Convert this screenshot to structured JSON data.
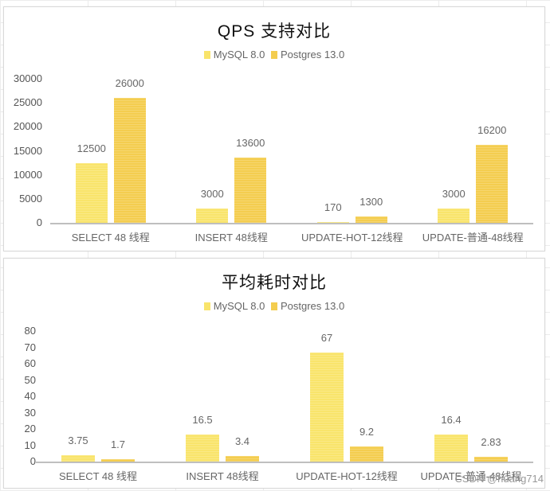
{
  "chart_data": [
    {
      "type": "bar",
      "title": "QPS 支持对比",
      "categories": [
        "SELECT 48 线程",
        "INSERT 48线程",
        "UPDATE-HOT-12线程",
        "UPDATE-普通-48线程"
      ],
      "series": [
        {
          "name": "MySQL 8.0",
          "values": [
            12500,
            3000,
            170,
            3000
          ],
          "color": "#f9e46b"
        },
        {
          "name": "Postgres 13.0",
          "values": [
            26000,
            13600,
            1300,
            16200
          ],
          "color": "#f4cd4f"
        }
      ],
      "yticks": [
        "0",
        "5000",
        "10000",
        "15000",
        "20000",
        "25000",
        "30000"
      ],
      "ylim": [
        0,
        30000
      ],
      "xlabel": "",
      "ylabel": "",
      "grid": false,
      "legend_position": "top"
    },
    {
      "type": "bar",
      "title": "平均耗时对比",
      "categories": [
        "SELECT 48 线程",
        "INSERT 48线程",
        "UPDATE-HOT-12线程",
        "UPDATE-普通-48线程"
      ],
      "series": [
        {
          "name": "MySQL 8.0",
          "values": [
            3.75,
            16.5,
            67,
            16.4
          ],
          "color": "#f9e46b"
        },
        {
          "name": "Postgres 13.0",
          "values": [
            1.7,
            3.4,
            9.2,
            2.83
          ],
          "color": "#f4cd4f"
        }
      ],
      "yticks": [
        "0",
        "10",
        "20",
        "30",
        "40",
        "50",
        "60",
        "70",
        "80"
      ],
      "ylim": [
        0,
        80
      ],
      "xlabel": "",
      "ylabel": "",
      "grid": false,
      "legend_position": "top"
    }
  ],
  "watermark": "CSDN @huang714"
}
